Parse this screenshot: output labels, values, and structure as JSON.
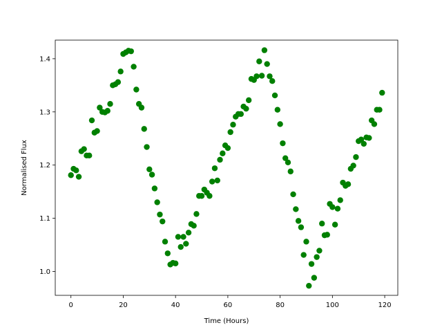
{
  "chart_data": {
    "type": "scatter",
    "title": "",
    "xlabel": "Time (Hours)",
    "ylabel": "Normalised Flux",
    "xlim": [
      -6,
      125
    ],
    "ylim": [
      0.955,
      1.435
    ],
    "x_ticks": [
      0,
      20,
      40,
      60,
      80,
      100,
      120
    ],
    "x_tick_labels": [
      "0",
      "20",
      "40",
      "60",
      "80",
      "100",
      "120"
    ],
    "y_ticks": [
      1.0,
      1.1,
      1.2,
      1.3,
      1.4
    ],
    "y_tick_labels": [
      "1.0",
      "1.1",
      "1.2",
      "1.3",
      "1.4"
    ],
    "grid": false,
    "marker_color": "#008000",
    "x": [
      0,
      1,
      2,
      3,
      4,
      5,
      6,
      7,
      8,
      9,
      10,
      11,
      12,
      13,
      14,
      15,
      16,
      17,
      18,
      19,
      20,
      21,
      22,
      23,
      24,
      25,
      26,
      27,
      28,
      29,
      30,
      31,
      32,
      33,
      34,
      35,
      36,
      37,
      38,
      39,
      40,
      41,
      42,
      43,
      44,
      45,
      46,
      47,
      48,
      49,
      50,
      51,
      52,
      53,
      54,
      55,
      56,
      57,
      58,
      59,
      60,
      61,
      62,
      63,
      64,
      65,
      66,
      67,
      68,
      69,
      70,
      71,
      72,
      73,
      74,
      75,
      76,
      77,
      78,
      79,
      80,
      81,
      82,
      83,
      84,
      85,
      86,
      87,
      88,
      89,
      90,
      91,
      92,
      93,
      94,
      95,
      96,
      97,
      98,
      99,
      100,
      101,
      102,
      103,
      104,
      105,
      106,
      107,
      108,
      109,
      110,
      111,
      112,
      113,
      114,
      115,
      116,
      117,
      118,
      119
    ],
    "y": [
      1.181,
      1.193,
      1.19,
      1.178,
      1.226,
      1.23,
      1.218,
      1.218,
      1.284,
      1.261,
      1.264,
      1.308,
      1.3,
      1.299,
      1.302,
      1.315,
      1.35,
      1.352,
      1.356,
      1.376,
      1.409,
      1.412,
      1.415,
      1.414,
      1.385,
      1.342,
      1.315,
      1.308,
      1.268,
      1.234,
      1.192,
      1.182,
      1.156,
      1.13,
      1.107,
      1.094,
      1.056,
      1.034,
      1.013,
      1.016,
      1.015,
      1.065,
      1.046,
      1.065,
      1.052,
      1.073,
      1.089,
      1.086,
      1.108,
      1.142,
      1.142,
      1.154,
      1.148,
      1.142,
      1.169,
      1.194,
      1.171,
      1.21,
      1.222,
      1.237,
      1.232,
      1.262,
      1.276,
      1.291,
      1.296,
      1.296,
      1.31,
      1.306,
      1.322,
      1.362,
      1.36,
      1.367,
      1.395,
      1.368,
      1.416,
      1.39,
      1.367,
      1.358,
      1.331,
      1.304,
      1.277,
      1.241,
      1.213,
      1.205,
      1.188,
      1.145,
      1.117,
      1.095,
      1.083,
      1.031,
      1.056,
      0.973,
      1.014,
      0.988,
      1.027,
      1.039,
      1.09,
      1.068,
      1.069,
      1.127,
      1.121,
      1.088,
      1.118,
      1.134,
      1.167,
      1.161,
      1.164,
      1.193,
      1.199,
      1.215,
      1.245,
      1.248,
      1.24,
      1.252,
      1.251,
      1.284,
      1.277,
      1.304,
      1.304,
      1.336
    ]
  }
}
